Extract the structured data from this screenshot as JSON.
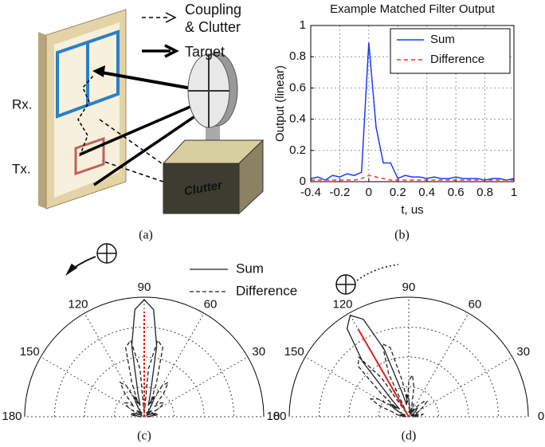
{
  "diagram": {
    "caption": "(a)",
    "legend_coupling": "Coupling",
    "legend_clutter": "& Clutter",
    "legend_target": "Target",
    "rx": "Rx.",
    "tx": "Tx.",
    "box": "Clutter"
  },
  "chart_data": [
    {
      "type": "line",
      "caption": "(b)",
      "title": "Example Matched Filter Output",
      "ylabel": "Output (linear)",
      "xlabel": "t, us",
      "x": [
        -0.4,
        -0.35,
        -0.3,
        -0.25,
        -0.2,
        -0.15,
        -0.1,
        -0.05,
        0,
        0.05,
        0.1,
        0.15,
        0.2,
        0.25,
        0.3,
        0.35,
        0.4,
        0.45,
        0.5,
        0.55,
        0.6,
        0.65,
        0.7,
        0.75,
        0.8,
        0.85,
        0.9,
        0.95,
        1
      ],
      "series": [
        {
          "name": "Sum",
          "color": "#1a3cff",
          "style": "solid",
          "values": [
            0.02,
            0.03,
            0.01,
            0.04,
            0.03,
            0.05,
            0.04,
            0.06,
            0.89,
            0.35,
            0.12,
            0.12,
            0.02,
            0.04,
            0.03,
            0.03,
            0.02,
            0.03,
            0.02,
            0.02,
            0.03,
            0.02,
            0.02,
            0.02,
            0.01,
            0.02,
            0.02,
            0.01,
            0.02
          ]
        },
        {
          "name": "Difference",
          "color": "#ff3030",
          "style": "dashed",
          "values": [
            0.01,
            0.01,
            0.01,
            0.01,
            0.01,
            0.01,
            0.01,
            0.02,
            0.04,
            0.03,
            0.02,
            0.01,
            0.01,
            0.01,
            0.01,
            0.01,
            0.01,
            0.01,
            0.01,
            0.01,
            0.01,
            0.01,
            0.01,
            0.01,
            0.01,
            0.01,
            0.01,
            0.01,
            0.01
          ]
        }
      ],
      "xlim": [
        -0.4,
        1
      ],
      "xticks": [
        -0.4,
        -0.2,
        0,
        0.2,
        0.4,
        0.6,
        0.8,
        1
      ],
      "ylim": [
        0,
        1
      ],
      "yticks": [
        0,
        0.2,
        0.4,
        0.6,
        0.8,
        1
      ],
      "grid": true,
      "legend": "upper-right"
    },
    {
      "type": "polar",
      "caption": "(c)",
      "theta": [
        0,
        5,
        10,
        15,
        20,
        25,
        30,
        35,
        40,
        45,
        50,
        55,
        60,
        65,
        70,
        75,
        80,
        85,
        90,
        95,
        100,
        105,
        110,
        115,
        120,
        125,
        130,
        135,
        140,
        145,
        150,
        155,
        160,
        165,
        170,
        175,
        180
      ],
      "thetaticks": [
        0,
        30,
        60,
        90,
        120,
        150,
        180
      ],
      "rlim": [
        0,
        1
      ],
      "rticks": [
        0.25,
        0.5,
        0.75,
        1
      ],
      "series": [
        {
          "name": "Sum",
          "color": "#222222",
          "style": "solid",
          "values": [
            0.02,
            0.05,
            0.08,
            0.1,
            0.08,
            0.04,
            0.02,
            0.05,
            0.08,
            0.06,
            0.03,
            0.08,
            0.15,
            0.18,
            0.1,
            0.2,
            0.6,
            0.9,
            0.98,
            0.9,
            0.6,
            0.2,
            0.1,
            0.18,
            0.15,
            0.08,
            0.03,
            0.06,
            0.08,
            0.05,
            0.02,
            0.04,
            0.08,
            0.1,
            0.08,
            0.05,
            0.02
          ]
        },
        {
          "name": "Difference",
          "color": "#222222",
          "style": "dashed",
          "values": [
            0.03,
            0.08,
            0.12,
            0.1,
            0.05,
            0.08,
            0.15,
            0.2,
            0.18,
            0.12,
            0.25,
            0.35,
            0.3,
            0.12,
            0.3,
            0.6,
            0.65,
            0.4,
            0.02,
            0.4,
            0.65,
            0.6,
            0.3,
            0.12,
            0.3,
            0.35,
            0.25,
            0.12,
            0.18,
            0.2,
            0.15,
            0.08,
            0.05,
            0.1,
            0.12,
            0.08,
            0.03
          ]
        }
      ],
      "arrow": {
        "angle": 90,
        "r": 0.88,
        "color": "#e02020"
      }
    },
    {
      "type": "polar",
      "caption": "(d)",
      "theta": [
        0,
        5,
        10,
        15,
        20,
        25,
        30,
        35,
        40,
        45,
        50,
        55,
        60,
        65,
        70,
        75,
        80,
        85,
        90,
        95,
        100,
        105,
        110,
        115,
        120,
        125,
        130,
        135,
        140,
        145,
        150,
        155,
        160,
        165,
        170,
        175,
        180
      ],
      "thetaticks": [
        0,
        30,
        60,
        90,
        120,
        150,
        180
      ],
      "rlim": [
        0,
        1
      ],
      "rticks": [
        0.25,
        0.5,
        0.75,
        1
      ],
      "series": [
        {
          "color": "#222222",
          "style": "solid",
          "values": [
            0.03,
            0.06,
            0.08,
            0.05,
            0.02,
            0.05,
            0.02,
            0.05,
            0.08,
            0.1,
            0.08,
            0.04,
            0.02,
            0.05,
            0.08,
            0.06,
            0.03,
            0.08,
            0.15,
            0.18,
            0.1,
            0.2,
            0.6,
            0.9,
            0.98,
            0.9,
            0.6,
            0.2,
            0.1,
            0.18,
            0.15,
            0.08,
            0.03,
            0.06,
            0.08,
            0.05,
            0.02
          ]
        },
        {
          "color": "#222222",
          "style": "dashed",
          "values": [
            0.05,
            0.1,
            0.12,
            0.08,
            0.05,
            0.08,
            0.1,
            0.15,
            0.2,
            0.18,
            0.12,
            0.08,
            0.03,
            0.08,
            0.12,
            0.1,
            0.25,
            0.35,
            0.3,
            0.12,
            0.3,
            0.6,
            0.65,
            0.4,
            0.02,
            0.4,
            0.65,
            0.6,
            0.3,
            0.12,
            0.3,
            0.35,
            0.25,
            0.12,
            0.1,
            0.06,
            0.03
          ]
        }
      ],
      "arrow": {
        "angle": 120,
        "r": 0.85,
        "color": "#e02020"
      }
    }
  ]
}
